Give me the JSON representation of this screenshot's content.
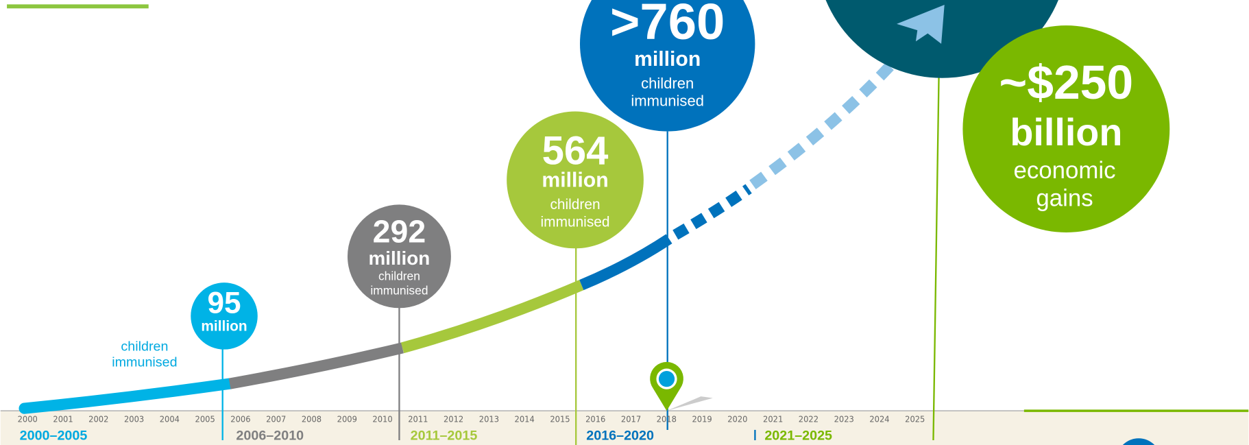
{
  "years": [
    "2000",
    "2001",
    "2002",
    "2003",
    "2004",
    "2005",
    "2006",
    "2007",
    "2008",
    "2009",
    "2010",
    "2011",
    "2012",
    "2013",
    "2014",
    "2015",
    "2016",
    "2017",
    "2018",
    "2019",
    "2020",
    "2021",
    "2022",
    "2023",
    "2024",
    "2025"
  ],
  "periods": [
    "2000–2005",
    "2006–2010",
    "2011–2015",
    "2016–2020",
    "2021–2025"
  ],
  "bubbles": [
    {
      "number": "95",
      "unit": "million",
      "caption": [
        "children",
        "immunised"
      ]
    },
    {
      "number": "292",
      "unit": "million",
      "caption": [
        "children",
        "immunised"
      ]
    },
    {
      "number": "564",
      "unit": "million",
      "caption": [
        "children",
        "immunised"
      ]
    },
    {
      "number": ">760",
      "unit": "million",
      "caption": [
        "children",
        "immunised"
      ]
    },
    {
      "number": "~$250",
      "unit": "billion",
      "caption": [
        "economic",
        "gains"
      ]
    }
  ]
}
